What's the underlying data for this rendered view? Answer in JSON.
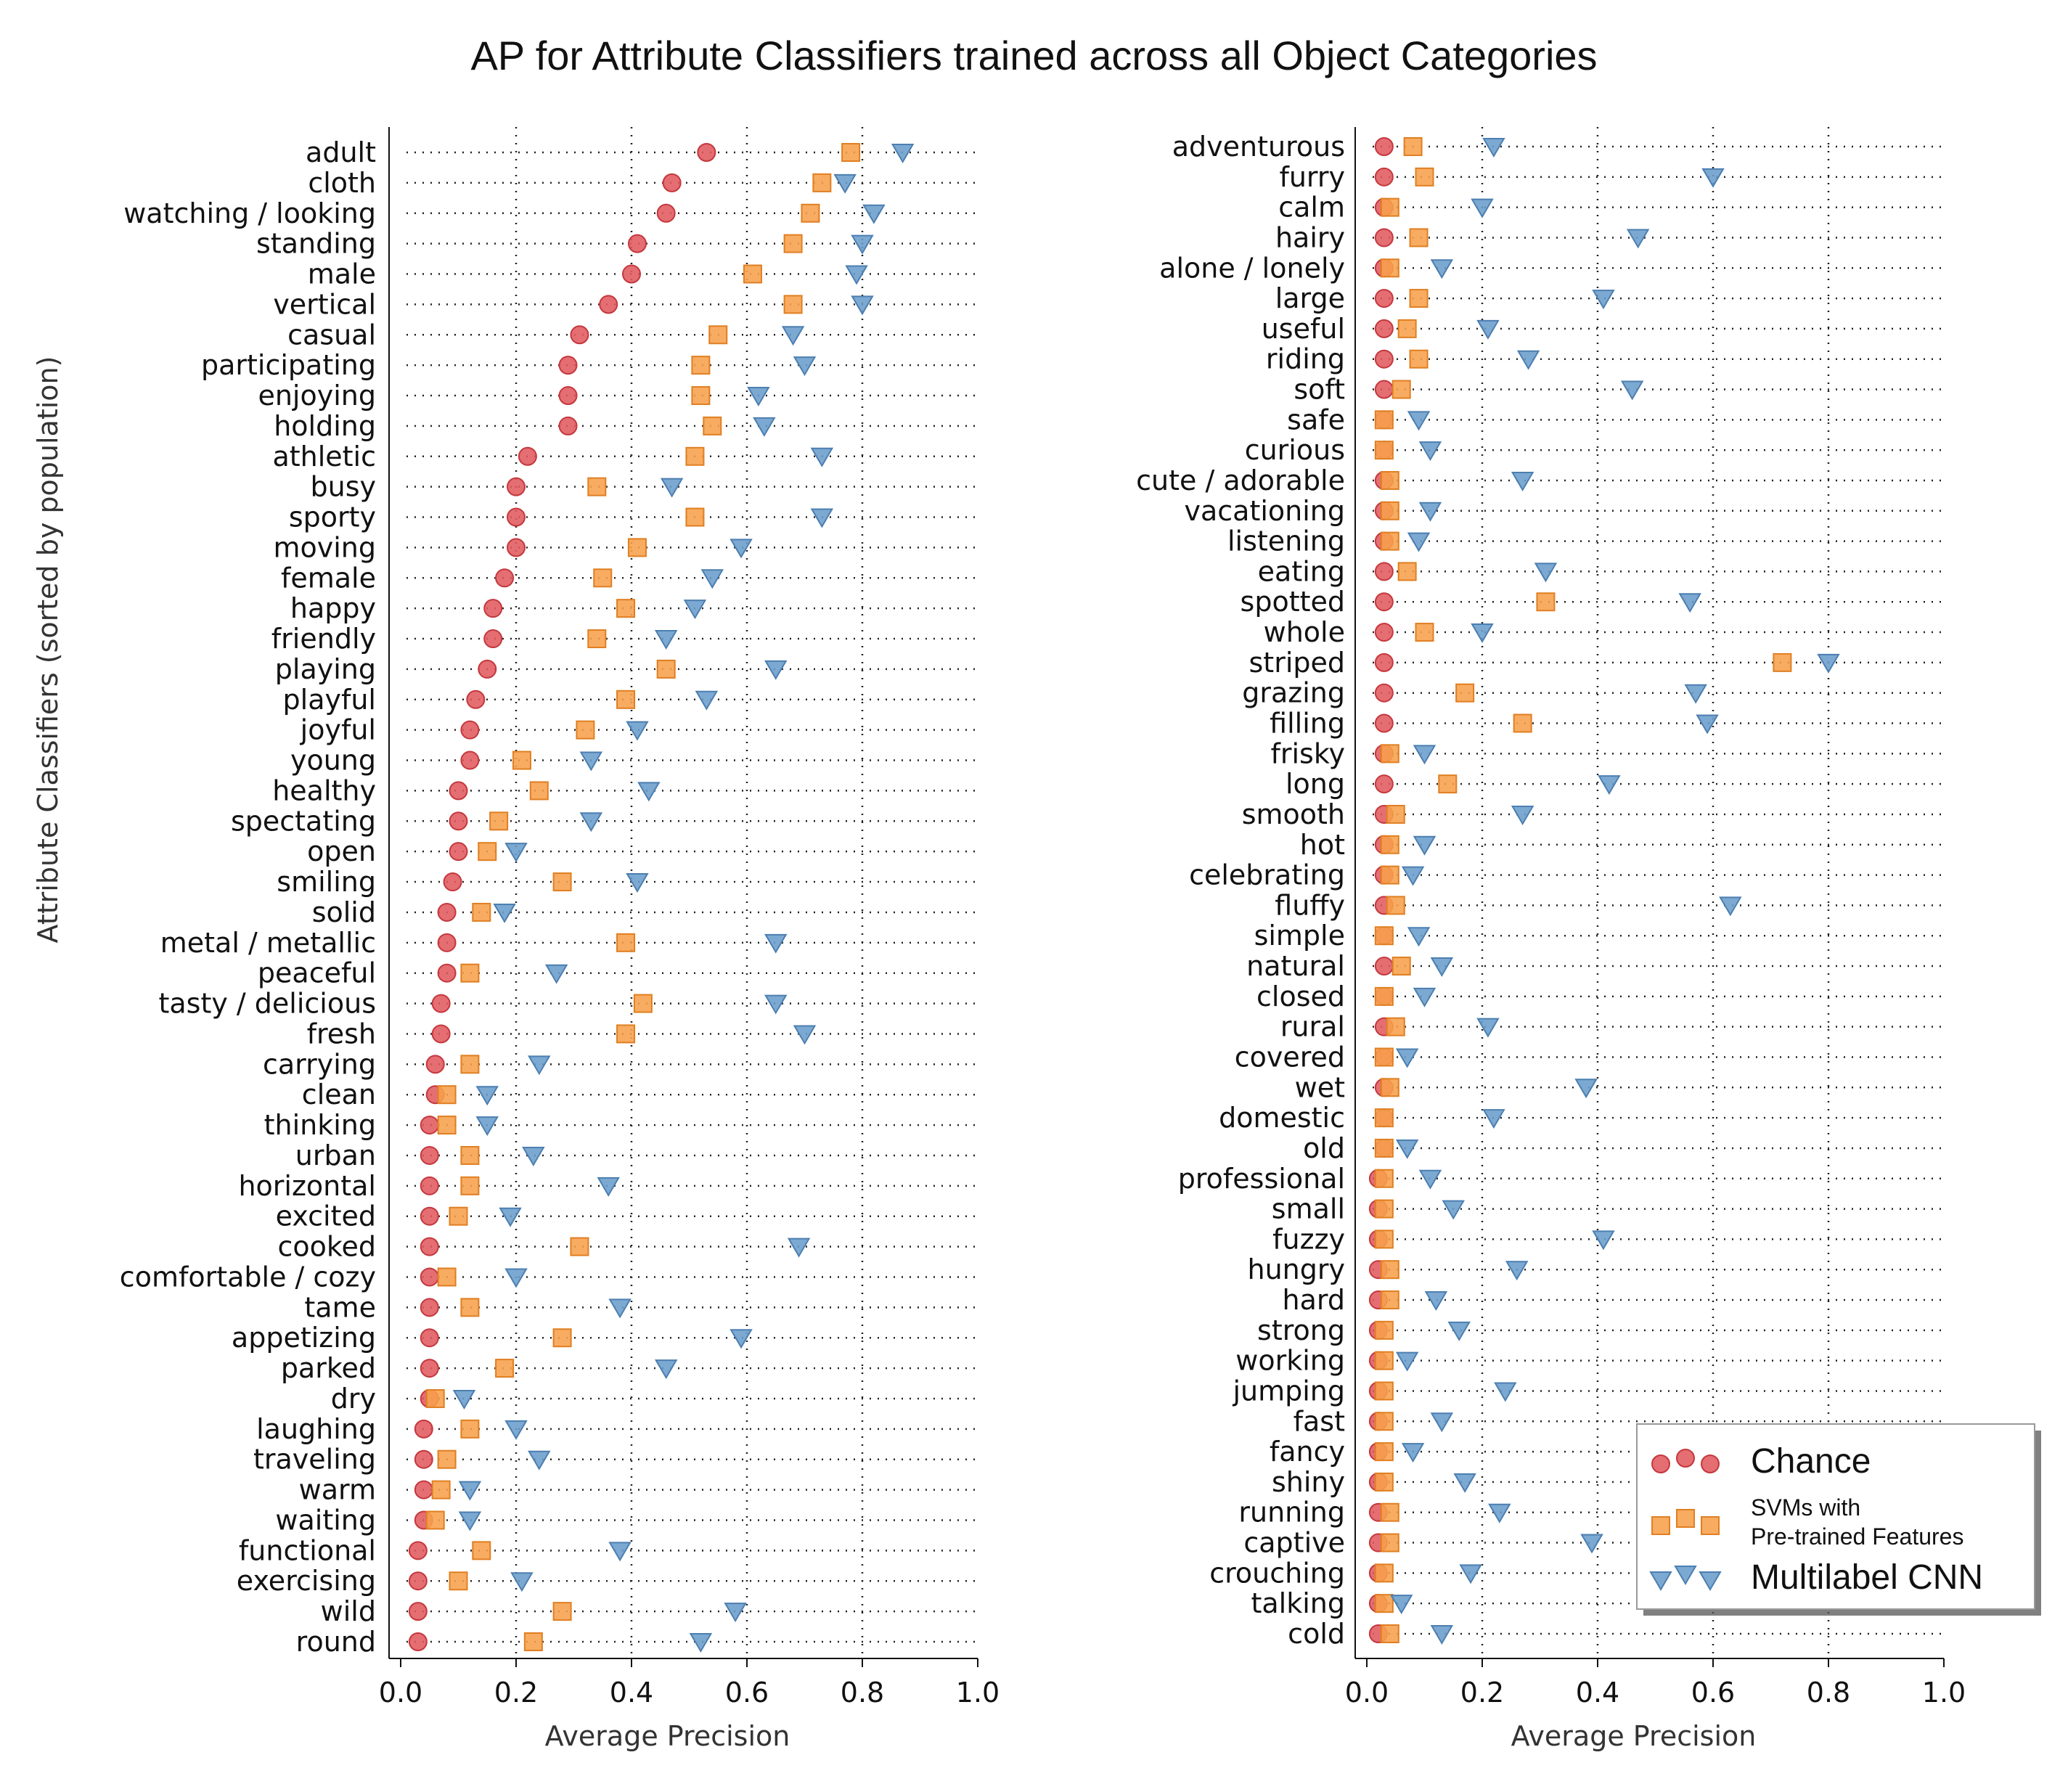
{
  "title": "AP for Attribute Classifiers trained across all Object Categories",
  "ylabel": "Attribute Classifiers (sorted by population)",
  "legend": [
    {
      "name": "Chance",
      "marker": "circle",
      "color": "#e05a5f"
    },
    {
      "name": "SVMs with\nPre-trained Features",
      "marker": "square",
      "color": "#f7a04b"
    },
    {
      "name": "Multilabel CNN",
      "marker": "triangle",
      "color": "#6a9dcc"
    }
  ],
  "colors": {
    "chance": "#e05a5f",
    "svm": "#f7a04b",
    "cnn": "#6a9dcc"
  },
  "chart_data": [
    {
      "type": "scatter",
      "xlabel": "Average Precision",
      "ylabel": "Attribute Classifiers (sorted by population)",
      "xlim": [
        0,
        1.0
      ],
      "xticks": [
        "0.0",
        "0.2",
        "0.4",
        "0.6",
        "0.8",
        "1.0"
      ],
      "grid": true,
      "series_names": [
        "Chance",
        "SVMs with Pre-trained Features",
        "Multilabel CNN"
      ],
      "categories": [
        "adult",
        "cloth",
        "watching / looking",
        "standing",
        "male",
        "vertical",
        "casual",
        "participating",
        "enjoying",
        "holding",
        "athletic",
        "busy",
        "sporty",
        "moving",
        "female",
        "happy",
        "friendly",
        "playing",
        "playful",
        "joyful",
        "young",
        "healthy",
        "spectating",
        "open",
        "smiling",
        "solid",
        "metal / metallic",
        "peaceful",
        "tasty / delicious",
        "fresh",
        "carrying",
        "clean",
        "thinking",
        "urban",
        "horizontal",
        "excited",
        "cooked",
        "comfortable / cozy",
        "tame",
        "appetizing",
        "parked",
        "dry",
        "laughing",
        "traveling",
        "warm",
        "waiting",
        "functional",
        "exercising",
        "wild",
        "round"
      ],
      "chance": [
        0.53,
        0.47,
        0.46,
        0.41,
        0.4,
        0.36,
        0.31,
        0.29,
        0.29,
        0.29,
        0.22,
        0.2,
        0.2,
        0.2,
        0.18,
        0.16,
        0.16,
        0.15,
        0.13,
        0.12,
        0.12,
        0.1,
        0.1,
        0.1,
        0.09,
        0.08,
        0.08,
        0.08,
        0.07,
        0.07,
        0.06,
        0.06,
        0.05,
        0.05,
        0.05,
        0.05,
        0.05,
        0.05,
        0.05,
        0.05,
        0.05,
        0.05,
        0.04,
        0.04,
        0.04,
        0.04,
        0.03,
        0.03,
        0.03,
        0.03
      ],
      "svm": [
        0.78,
        0.73,
        0.71,
        0.68,
        0.61,
        0.68,
        0.55,
        0.52,
        0.52,
        0.54,
        0.51,
        0.34,
        0.51,
        0.41,
        0.35,
        0.39,
        0.34,
        0.46,
        0.39,
        0.32,
        0.21,
        0.24,
        0.17,
        0.15,
        0.28,
        0.14,
        0.39,
        0.12,
        0.42,
        0.39,
        0.12,
        0.08,
        0.08,
        0.12,
        0.12,
        0.1,
        0.31,
        0.08,
        0.12,
        0.28,
        0.18,
        0.06,
        0.12,
        0.08,
        0.07,
        0.06,
        0.14,
        0.1,
        0.28,
        0.23
      ],
      "cnn": [
        0.87,
        0.77,
        0.82,
        0.8,
        0.79,
        0.8,
        0.68,
        0.7,
        0.62,
        0.63,
        0.73,
        0.47,
        0.73,
        0.59,
        0.54,
        0.51,
        0.46,
        0.65,
        0.53,
        0.41,
        0.33,
        0.43,
        0.33,
        0.2,
        0.41,
        0.18,
        0.65,
        0.27,
        0.65,
        0.7,
        0.24,
        0.15,
        0.15,
        0.23,
        0.36,
        0.19,
        0.69,
        0.2,
        0.38,
        0.59,
        0.46,
        0.11,
        0.2,
        0.24,
        0.12,
        0.12,
        0.38,
        0.21,
        0.58,
        0.52
      ]
    },
    {
      "type": "scatter",
      "xlabel": "Average Precision",
      "xlim": [
        0,
        1.0
      ],
      "xticks": [
        "0.0",
        "0.2",
        "0.4",
        "0.6",
        "0.8",
        "1.0"
      ],
      "grid": true,
      "series_names": [
        "Chance",
        "SVMs with Pre-trained Features",
        "Multilabel CNN"
      ],
      "categories": [
        "adventurous",
        "furry",
        "calm",
        "hairy",
        "alone / lonely",
        "large",
        "useful",
        "riding",
        "soft",
        "safe",
        "curious",
        "cute / adorable",
        "vacationing",
        "listening",
        "eating",
        "spotted",
        "whole",
        "striped",
        "grazing",
        "filling",
        "frisky",
        "long",
        "smooth",
        "hot",
        "celebrating",
        "fluffy",
        "simple",
        "natural",
        "closed",
        "rural",
        "covered",
        "wet",
        "domestic",
        "old",
        "professional",
        "small",
        "fuzzy",
        "hungry",
        "hard",
        "strong",
        "working",
        "jumping",
        "fast",
        "fancy",
        "shiny",
        "running",
        "captive",
        "crouching",
        "talking",
        "cold"
      ],
      "chance": [
        0.03,
        0.03,
        0.03,
        0.03,
        0.03,
        0.03,
        0.03,
        0.03,
        0.03,
        0.03,
        0.03,
        0.03,
        0.03,
        0.03,
        0.03,
        0.03,
        0.03,
        0.03,
        0.03,
        0.03,
        0.03,
        0.03,
        0.03,
        0.03,
        0.03,
        0.03,
        0.03,
        0.03,
        0.03,
        0.03,
        0.03,
        0.03,
        0.03,
        0.03,
        0.02,
        0.02,
        0.02,
        0.02,
        0.02,
        0.02,
        0.02,
        0.02,
        0.02,
        0.02,
        0.02,
        0.02,
        0.02,
        0.02,
        0.02,
        0.02
      ],
      "svm": [
        0.08,
        0.1,
        0.04,
        0.09,
        0.04,
        0.09,
        0.07,
        0.09,
        0.06,
        0.03,
        0.03,
        0.04,
        0.04,
        0.04,
        0.07,
        0.31,
        0.1,
        0.72,
        0.17,
        0.27,
        0.04,
        0.14,
        0.05,
        0.04,
        0.04,
        0.05,
        0.03,
        0.06,
        0.03,
        0.05,
        0.03,
        0.04,
        0.03,
        0.03,
        0.03,
        0.03,
        0.03,
        0.04,
        0.04,
        0.03,
        0.03,
        0.03,
        0.03,
        0.03,
        0.03,
        0.04,
        0.04,
        0.03,
        0.03,
        0.04
      ],
      "cnn": [
        0.22,
        0.6,
        0.2,
        0.47,
        0.13,
        0.41,
        0.21,
        0.28,
        0.46,
        0.09,
        0.11,
        0.27,
        0.11,
        0.09,
        0.31,
        0.56,
        0.2,
        0.8,
        0.57,
        0.59,
        0.1,
        0.42,
        0.27,
        0.1,
        0.08,
        0.63,
        0.09,
        0.13,
        0.1,
        0.21,
        0.07,
        0.38,
        0.22,
        0.07,
        0.11,
        0.15,
        0.41,
        0.26,
        0.12,
        0.16,
        0.07,
        0.24,
        0.13,
        0.08,
        0.17,
        0.23,
        0.39,
        0.18,
        0.06,
        0.13
      ]
    }
  ]
}
